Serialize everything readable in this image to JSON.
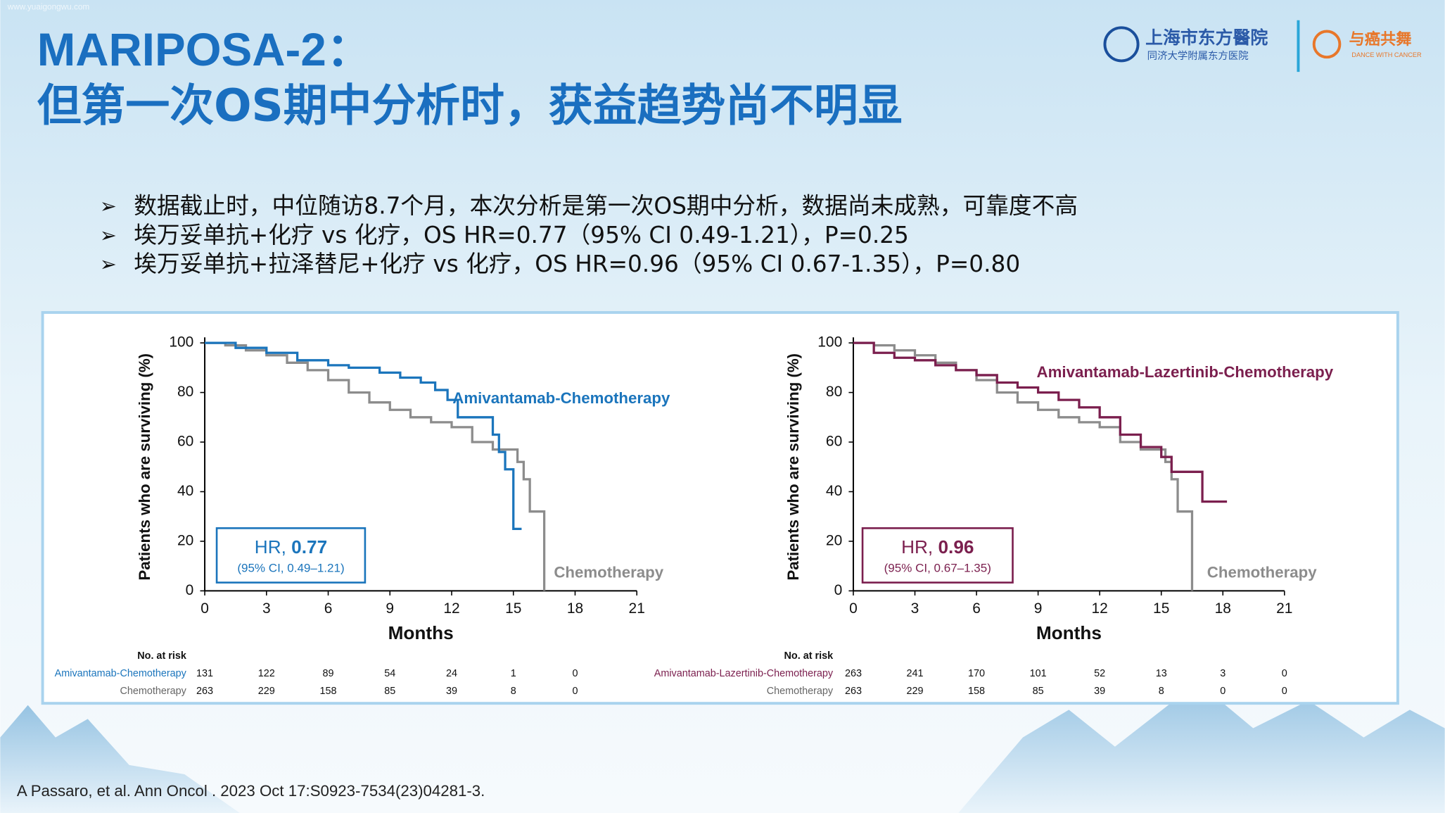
{
  "watermark": "www.yuaigongwu.com",
  "title": [
    "MARIPOSA-2：",
    "但第一次OS期中分析时，获益趋势尚不明显"
  ],
  "logos": {
    "hospital": "上海市东方醫院",
    "hospital_sub": "同济大学附属东方医院",
    "partner": "与癌共舞",
    "partner_sub": "DANCE WITH CANCER"
  },
  "bullets": [
    "数据截止时，中位随访8.7个月，本次分析是第一次OS期中分析，数据尚未成熟，可靠度不高",
    "埃万妥单抗+化疗 vs 化疗，OS HR=0.77（95% CI 0.49-1.21），P=0.25",
    "埃万妥单抗+拉泽替尼+化疗 vs 化疗，OS HR=0.96（95% CI 0.67-1.35），P=0.80"
  ],
  "citation": "A Passaro, et al. Ann Oncol . 2023 Oct 17:S0923-7534(23)04281-3.",
  "chart_data": [
    {
      "type": "line",
      "step": true,
      "xlabel": "Months",
      "ylabel": "Patients who are surviving (%)",
      "xlim": [
        0,
        21
      ],
      "ylim": [
        0,
        100
      ],
      "xticks": [
        0,
        3,
        6,
        9,
        12,
        15,
        18,
        21
      ],
      "yticks": [
        0,
        20,
        40,
        60,
        80,
        100
      ],
      "series": [
        {
          "name": "Amivantamab-Chemotherapy",
          "color": "#1b75bc",
          "x": [
            0,
            1.5,
            1.5,
            3,
            3,
            4.5,
            4.5,
            6,
            6,
            7,
            7,
            8.5,
            8.5,
            9.5,
            9.5,
            10.5,
            10.5,
            11.2,
            11.2,
            11.8,
            11.8,
            12.3,
            12.3,
            14,
            14,
            14.3,
            14.3,
            14.6,
            14.6,
            15,
            15,
            15.4
          ],
          "values": [
            100,
            100,
            98,
            98,
            96,
            96,
            93,
            93,
            91,
            91,
            90,
            90,
            88,
            88,
            86,
            86,
            84,
            84,
            81,
            81,
            77,
            77,
            70,
            70,
            63,
            63,
            56,
            56,
            49,
            49,
            25,
            25
          ]
        },
        {
          "name": "Chemotherapy",
          "color": "#8c8c8c",
          "x": [
            0,
            1,
            1,
            2,
            2,
            3,
            3,
            4,
            4,
            5,
            5,
            6,
            6,
            7,
            7,
            8,
            8,
            9,
            9,
            10,
            10,
            11,
            11,
            12,
            12,
            13,
            13,
            14,
            14,
            15.2,
            15.2,
            15.5,
            15.5,
            15.8,
            15.8,
            16.5,
            16.5
          ],
          "values": [
            100,
            100,
            99,
            99,
            97,
            97,
            95,
            95,
            92,
            92,
            89,
            89,
            85,
            85,
            80,
            80,
            76,
            76,
            73,
            73,
            70,
            70,
            68,
            68,
            66,
            66,
            60,
            60,
            57,
            57,
            52,
            52,
            45,
            45,
            32,
            32,
            0
          ]
        }
      ],
      "annotation": {
        "hr_label": "HR, ",
        "hr_value": "0.77",
        "ci": "(95% CI, 0.49–1.21)"
      },
      "risk_table": {
        "title": "No. at risk",
        "months": [
          0,
          3,
          6,
          9,
          12,
          15,
          18
        ],
        "rows": [
          {
            "name": "Amivantamab-Chemotherapy",
            "values": [
              131,
              122,
              89,
              54,
              24,
              1,
              0
            ]
          },
          {
            "name": "Chemotherapy",
            "values": [
              263,
              229,
              158,
              85,
              39,
              8,
              0
            ]
          }
        ]
      }
    },
    {
      "type": "line",
      "step": true,
      "xlabel": "Months",
      "ylabel": "Patients who are surviving (%)",
      "xlim": [
        0,
        21
      ],
      "ylim": [
        0,
        100
      ],
      "xticks": [
        0,
        3,
        6,
        9,
        12,
        15,
        18,
        21
      ],
      "yticks": [
        0,
        20,
        40,
        60,
        80,
        100
      ],
      "series": [
        {
          "name": "Amivantamab-Lazertinib-Chemotherapy",
          "color": "#7b1f4e",
          "x": [
            0,
            1,
            1,
            2,
            2,
            3,
            3,
            4,
            4,
            5,
            5,
            6,
            6,
            7,
            7,
            8,
            8,
            9,
            9,
            10,
            10,
            11,
            11,
            12,
            12,
            13,
            13,
            14,
            14,
            15,
            15,
            15.5,
            15.5,
            17,
            17,
            18.2
          ],
          "values": [
            100,
            100,
            96,
            96,
            94,
            94,
            93,
            93,
            91,
            91,
            89,
            89,
            87,
            87,
            84,
            84,
            82,
            82,
            80,
            80,
            77,
            77,
            74,
            74,
            70,
            70,
            63,
            63,
            58,
            58,
            54,
            54,
            48,
            48,
            36,
            36
          ]
        },
        {
          "name": "Chemotherapy",
          "color": "#8c8c8c",
          "x": [
            0,
            1,
            1,
            2,
            2,
            3,
            3,
            4,
            4,
            5,
            5,
            6,
            6,
            7,
            7,
            8,
            8,
            9,
            9,
            10,
            10,
            11,
            11,
            12,
            12,
            13,
            13,
            14,
            14,
            15.2,
            15.2,
            15.5,
            15.5,
            15.8,
            15.8,
            16.5,
            16.5
          ],
          "values": [
            100,
            100,
            99,
            99,
            97,
            97,
            95,
            95,
            92,
            92,
            89,
            89,
            85,
            85,
            80,
            80,
            76,
            76,
            73,
            73,
            70,
            70,
            68,
            68,
            66,
            66,
            60,
            60,
            57,
            57,
            52,
            52,
            45,
            45,
            32,
            32,
            0
          ]
        }
      ],
      "annotation": {
        "hr_label": "HR, ",
        "hr_value": "0.96",
        "ci": "(95% CI, 0.67–1.35)"
      },
      "risk_table": {
        "title": "No. at risk",
        "months": [
          0,
          3,
          6,
          9,
          12,
          15,
          18,
          21
        ],
        "rows": [
          {
            "name": "Amivantamab-Lazertinib-Chemotherapy",
            "values": [
              263,
              241,
              170,
              101,
              52,
              13,
              3,
              0
            ]
          },
          {
            "name": "Chemotherapy",
            "values": [
              263,
              229,
              158,
              85,
              39,
              8,
              0,
              0
            ]
          }
        ]
      }
    }
  ]
}
